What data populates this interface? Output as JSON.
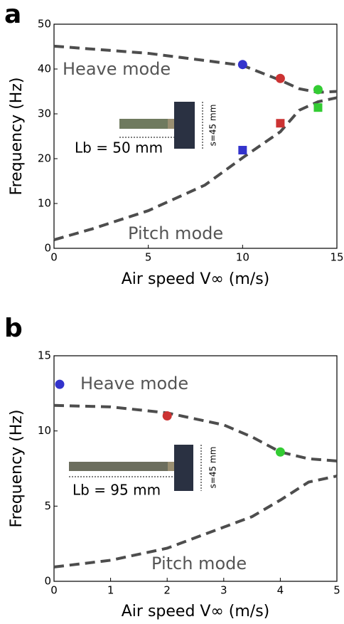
{
  "chart_data": [
    {
      "type": "line",
      "panel_label": "a",
      "x_label": "Air speed V∞  (m/s)",
      "y_label": "Frequency (Hz)",
      "xlim": [
        0,
        15
      ],
      "xticks": [
        0,
        5,
        10,
        15
      ],
      "ylim": [
        0,
        50
      ],
      "yticks": [
        0,
        10,
        20,
        30,
        40,
        50
      ],
      "annotations": [
        "Heave mode",
        "Pitch mode",
        "Lb = 50 mm",
        "s=45 mm"
      ],
      "series": [
        {
          "kind": "line",
          "color": "#4d4d4d",
          "x": [
            0,
            5,
            8,
            10,
            12,
            13,
            14,
            15
          ],
          "values": [
            45.1,
            43.5,
            41.9,
            40.8,
            37.5,
            35.6,
            34.8,
            35
          ]
        },
        {
          "kind": "line",
          "color": "#4d4d4d",
          "x": [
            0,
            2,
            5,
            8,
            10,
            12,
            13,
            14,
            15
          ],
          "values": [
            1.9,
            4.3,
            8.4,
            14.1,
            20.2,
            26,
            30.8,
            32.7,
            33.6
          ]
        },
        {
          "kind": "scatter",
          "marker": "circle",
          "colors": [
            "#3333cc",
            "#cc3333",
            "#33cc33"
          ],
          "x": [
            10,
            12,
            14
          ],
          "values": [
            41,
            37.9,
            35.4
          ]
        },
        {
          "kind": "scatter",
          "marker": "square",
          "colors": [
            "#3333cc",
            "#cc3333",
            "#33cc33"
          ],
          "x": [
            10,
            12,
            14
          ],
          "values": [
            21.9,
            27.9,
            31.4
          ]
        }
      ]
    },
    {
      "type": "line",
      "panel_label": "b",
      "x_label": "Air speed V∞  (m/s)",
      "y_label": "Frequency (Hz)",
      "xlim": [
        0,
        5
      ],
      "xticks": [
        0,
        1,
        2,
        3,
        4,
        5
      ],
      "ylim": [
        0,
        15
      ],
      "yticks": [
        0,
        5,
        10,
        15
      ],
      "annotations": [
        "Heave mode",
        "Pitch mode",
        "Lb = 95 mm",
        "s=45 mm"
      ],
      "series": [
        {
          "kind": "line",
          "color": "#4d4d4d",
          "x": [
            0,
            1,
            2,
            3,
            3.5,
            4,
            4.5,
            5
          ],
          "values": [
            11.7,
            11.6,
            11.2,
            10.4,
            9.6,
            8.6,
            8.15,
            8.0
          ]
        },
        {
          "kind": "line",
          "color": "#4d4d4d",
          "x": [
            0,
            1,
            2,
            3,
            3.5,
            4,
            4.5,
            5
          ],
          "values": [
            0.95,
            1.4,
            2.2,
            3.6,
            4.3,
            5.4,
            6.6,
            7.0
          ]
        },
        {
          "kind": "scatter",
          "marker": "circle",
          "colors": [
            "#3333cc",
            "#cc3333",
            "#33cc33"
          ],
          "x": [
            0.1,
            2,
            4
          ],
          "values": [
            13.1,
            11,
            8.6
          ]
        }
      ]
    }
  ]
}
